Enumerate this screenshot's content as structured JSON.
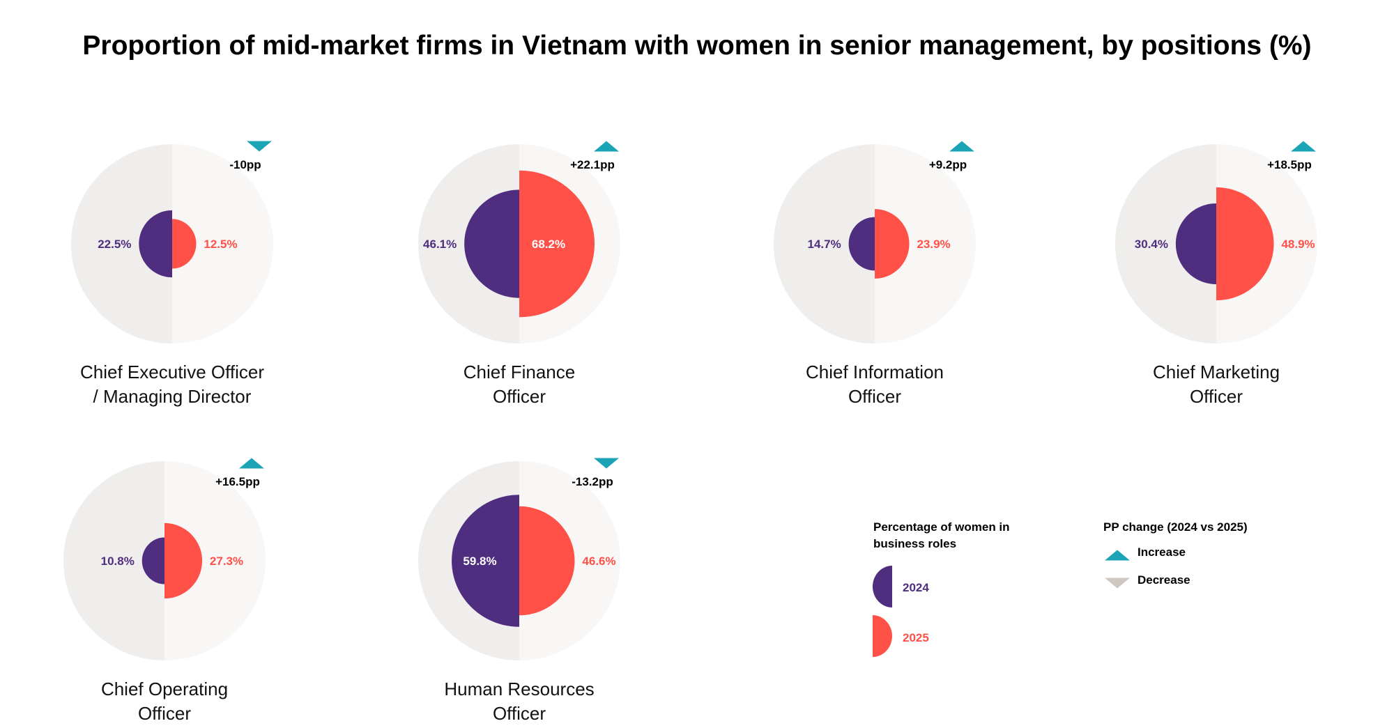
{
  "chart_data": {
    "type": "diamond-comparison",
    "title": "Proportion of mid-market firms in Vietnam with women in senior management, by positions (%)",
    "series_names": [
      "2024",
      "2025"
    ],
    "colors": {
      "2024": "#4f2d7f",
      "2025": "#ff5148",
      "increase": "#1aa4b5",
      "decrease": "#cdc7c0",
      "bg_left": "#efeeed",
      "bg_right": "#f8f7f6"
    },
    "positions": [
      {
        "name_lines": [
          "Chief Executive Officer",
          "/ Managing Director"
        ],
        "v2024": 22.5,
        "v2025": 12.5,
        "v2024_label": "22.5%",
        "v2025_label": "12.5%",
        "change": "-10pp",
        "direction": "down"
      },
      {
        "name_lines": [
          "Chief Finance",
          "Officer"
        ],
        "v2024": 46.1,
        "v2025": 68.2,
        "v2024_label": "46.1%",
        "v2025_label": "68.2%",
        "change": "+22.1pp",
        "direction": "up"
      },
      {
        "name_lines": [
          "Chief Information",
          "Officer"
        ],
        "v2024": 14.7,
        "v2025": 23.9,
        "v2024_label": "14.7%",
        "v2025_label": "23.9%",
        "change": "+9.2pp",
        "direction": "up"
      },
      {
        "name_lines": [
          "Chief Marketing",
          "Officer"
        ],
        "v2024": 30.4,
        "v2025": 48.9,
        "v2024_label": "30.4%",
        "v2025_label": "48.9%",
        "change": "+18.5pp",
        "direction": "up"
      },
      {
        "name_lines": [
          "Chief Operating",
          "Officer"
        ],
        "v2024": 10.8,
        "v2025": 27.3,
        "v2024_label": "10.8%",
        "v2025_label": "27.3%",
        "change": "+16.5pp",
        "direction": "up"
      },
      {
        "name_lines": [
          "Human Resources",
          "Officer"
        ],
        "v2024": 59.8,
        "v2025": 46.6,
        "v2024_label": "59.8%",
        "v2025_label": "46.6%",
        "change": "-13.2pp",
        "direction": "down"
      }
    ],
    "legend": {
      "pct_title_lines": [
        "Percentage of women in",
        "business roles"
      ],
      "y2024": "2024",
      "y2025": "2025",
      "pp_title": "PP change (2024 vs 2025)",
      "increase": "Increase",
      "decrease": "Decrease"
    }
  }
}
